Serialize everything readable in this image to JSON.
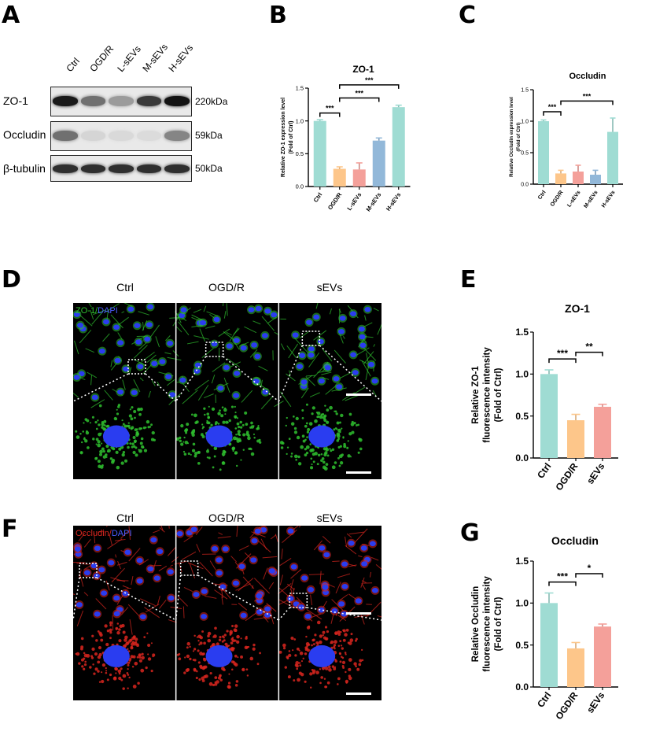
{
  "panel_letters": [
    "A",
    "B",
    "C",
    "D",
    "E",
    "F",
    "G"
  ],
  "western_blot": {
    "lanes": [
      "Ctrl",
      "OGD/R",
      "L-sEVs",
      "M-sEVs",
      "H-sEVs"
    ],
    "rows": [
      {
        "protein": "ZO-1",
        "size": "220kDa",
        "intensity": [
          0.95,
          0.55,
          0.35,
          0.8,
          0.98
        ]
      },
      {
        "protein": "Occludin",
        "size": "59kDa",
        "intensity": [
          0.55,
          0.08,
          0.06,
          0.05,
          0.45
        ]
      },
      {
        "protein": "β-tubulin",
        "size": "50kDa",
        "intensity": [
          0.85,
          0.85,
          0.85,
          0.85,
          0.85
        ]
      }
    ]
  },
  "microscopy": {
    "columns": [
      "Ctrl",
      "OGD/R",
      "sEVs"
    ],
    "zo1_label_a": "ZO-1/",
    "zo1_label_b": "DAPI",
    "occ_label_a": "Occludin/",
    "occ_label_b": "DAPI",
    "colors": {
      "zo1": "#2fc12f",
      "occludin": "#d8261f",
      "dapi": "#2a3df0"
    }
  },
  "chart_data": [
    {
      "id": "B",
      "type": "bar",
      "title": "ZO-1",
      "ylabel": "Relative ZO-1 expression level",
      "ylabel2": "(Fold of Ctrl)",
      "categories": [
        "Ctrl",
        "OGD/R",
        "L-sEVs",
        "M-sEVs",
        "H-sEVs"
      ],
      "values": [
        1.0,
        0.27,
        0.26,
        0.7,
        1.21
      ],
      "errors": [
        0.02,
        0.03,
        0.1,
        0.04,
        0.03
      ],
      "colors": [
        "#9fdcd3",
        "#fdc68a",
        "#f4a09a",
        "#92b8d9",
        "#9fdcd3"
      ],
      "ylim": [
        0,
        1.5
      ],
      "yticks": [
        0.0,
        0.5,
        1.0,
        1.5
      ],
      "significance": [
        {
          "from": 0,
          "to": 1,
          "label": "***"
        },
        {
          "from": 1,
          "to": 3,
          "label": "***"
        },
        {
          "from": 1,
          "to": 4,
          "label": "***"
        }
      ]
    },
    {
      "id": "C",
      "type": "bar",
      "title": "Occludin",
      "ylabel": "Relative Occludin expression level",
      "ylabel2": "(Fold of Ctrl)",
      "categories": [
        "Ctrl",
        "OGD/R",
        "L-sEVs",
        "M-sEVs",
        "H-sEVs"
      ],
      "values": [
        1.0,
        0.17,
        0.2,
        0.15,
        0.83
      ],
      "errors": [
        0.02,
        0.05,
        0.1,
        0.07,
        0.22
      ],
      "colors": [
        "#9fdcd3",
        "#fdc68a",
        "#f4a09a",
        "#92b8d9",
        "#9fdcd3"
      ],
      "ylim": [
        0,
        1.5
      ],
      "yticks": [
        0.0,
        0.5,
        1.0,
        1.5
      ],
      "significance": [
        {
          "from": 0,
          "to": 1,
          "label": "***"
        },
        {
          "from": 1,
          "to": 4,
          "label": "***"
        }
      ]
    },
    {
      "id": "E",
      "type": "bar",
      "title": "ZO-1",
      "ylabel": "Relative ZO-1",
      "ylabel2": "fluorescence intensity",
      "ylabel3": "(Fold of Ctrl)",
      "categories": [
        "Ctrl",
        "OGD/R",
        "sEVs"
      ],
      "values": [
        1.0,
        0.45,
        0.61
      ],
      "errors": [
        0.05,
        0.07,
        0.03
      ],
      "colors": [
        "#9fdcd3",
        "#fdc68a",
        "#f4a09a"
      ],
      "ylim": [
        0,
        1.5
      ],
      "yticks": [
        0.0,
        0.5,
        1.0,
        1.5
      ],
      "significance": [
        {
          "from": 0,
          "to": 1,
          "label": "***"
        },
        {
          "from": 1,
          "to": 2,
          "label": "**"
        }
      ]
    },
    {
      "id": "G",
      "type": "bar",
      "title": "Occludin",
      "ylabel": "Relative Occludin",
      "ylabel2": "fluorescence intensity",
      "ylabel3": "(Fold of Ctrl)",
      "categories": [
        "Ctrl",
        "OGD/R",
        "sEVs"
      ],
      "values": [
        1.0,
        0.46,
        0.72
      ],
      "errors": [
        0.12,
        0.07,
        0.03
      ],
      "colors": [
        "#9fdcd3",
        "#fdc68a",
        "#f4a09a"
      ],
      "ylim": [
        0,
        1.5
      ],
      "yticks": [
        0.0,
        0.5,
        1.0,
        1.5
      ],
      "significance": [
        {
          "from": 0,
          "to": 1,
          "label": "***"
        },
        {
          "from": 1,
          "to": 2,
          "label": "*"
        }
      ]
    }
  ]
}
